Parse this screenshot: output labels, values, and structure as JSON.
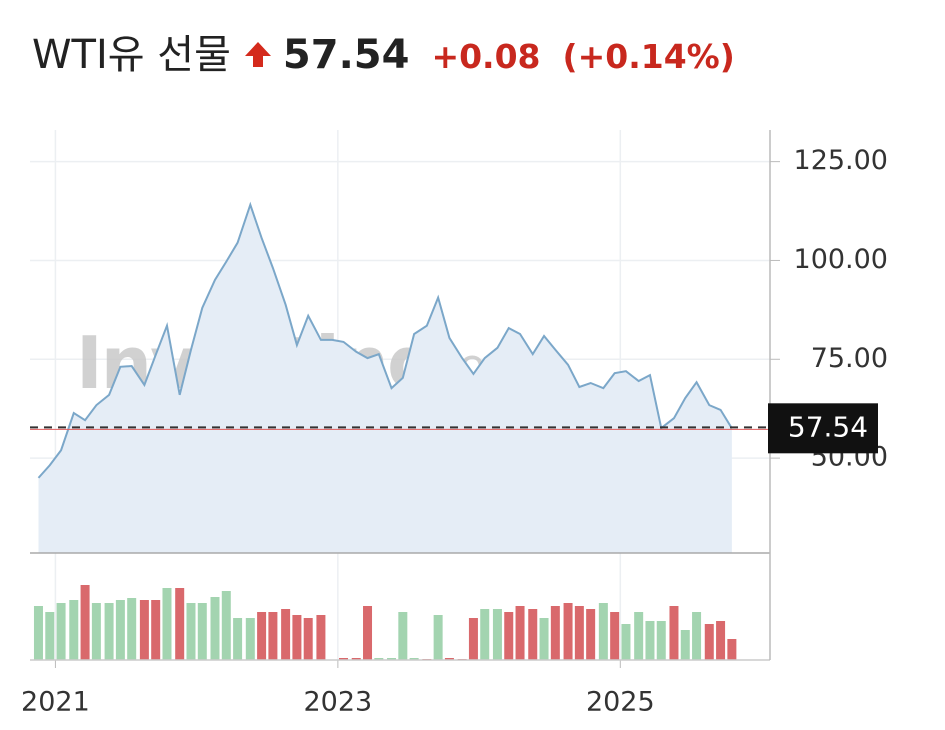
{
  "header": {
    "title": "WTI유 선물",
    "price": "57.54",
    "change": "+0.08",
    "change_pct": "(+0.14%)"
  },
  "chart_data": {
    "type": "line",
    "watermark": "Investing",
    "watermark_domain": "com",
    "x": [
      2020.88,
      2020.96,
      2021.04,
      2021.13,
      2021.21,
      2021.29,
      2021.38,
      2021.46,
      2021.54,
      2021.63,
      2021.71,
      2021.79,
      2021.88,
      2021.96,
      2022.04,
      2022.13,
      2022.21,
      2022.29,
      2022.38,
      2022.46,
      2022.54,
      2022.63,
      2022.71,
      2022.79,
      2022.88,
      2022.96,
      2023.04,
      2023.13,
      2023.21,
      2023.29,
      2023.38,
      2023.46,
      2023.54,
      2023.63,
      2023.71,
      2023.79,
      2023.88,
      2023.96,
      2024.04,
      2024.13,
      2024.21,
      2024.29,
      2024.38,
      2024.46,
      2024.54,
      2024.63,
      2024.71,
      2024.79,
      2024.88,
      2024.96,
      2025.04,
      2025.13,
      2025.21,
      2025.29,
      2025.38,
      2025.46,
      2025.54,
      2025.63,
      2025.71,
      2025.79
    ],
    "series": [
      {
        "name": "WTI",
        "color": "#7ba7c9",
        "fill": "#e5edf6",
        "values": [
          45.0,
          48.2,
          52.0,
          61.4,
          59.6,
          63.4,
          66.0,
          73.1,
          73.3,
          68.5,
          76.1,
          83.5,
          66.0,
          77.4,
          88.0,
          95.1,
          99.7,
          104.5,
          114.1,
          105.7,
          98.1,
          88.8,
          78.6,
          86.0,
          79.9,
          79.9,
          79.4,
          76.9,
          75.3,
          76.3,
          67.7,
          70.3,
          81.4,
          83.5,
          90.6,
          80.4,
          75.3,
          71.3,
          75.3,
          77.9,
          82.9,
          81.4,
          76.3,
          80.9,
          77.4,
          73.6,
          68.0,
          69.0,
          67.7,
          71.5,
          72.0,
          69.5,
          71.0,
          57.6,
          60.1,
          65.2,
          69.2,
          63.4,
          62.2,
          57.54
        ]
      }
    ],
    "volume": {
      "values": [
        54,
        48,
        57,
        60,
        75,
        57,
        57,
        60,
        62,
        60,
        60,
        72,
        72,
        57,
        57,
        63,
        69,
        42,
        42,
        48,
        48,
        51,
        45,
        42,
        45,
        0,
        2,
        2,
        54,
        2,
        2,
        48,
        2,
        1,
        45,
        2,
        1,
        42,
        51,
        51,
        48,
        54,
        51,
        42,
        54,
        57,
        54,
        51,
        57,
        48,
        36,
        48,
        39,
        39,
        54,
        30,
        48,
        36,
        39,
        21
      ],
      "colors": [
        "#a3d4b0",
        "#a3d4b0",
        "#a3d4b0",
        "#a3d4b0",
        "#d9696c",
        "#a3d4b0",
        "#a3d4b0",
        "#a3d4b0",
        "#a3d4b0",
        "#d9696c",
        "#d9696c",
        "#a3d4b0",
        "#d9696c",
        "#a3d4b0",
        "#a3d4b0",
        "#a3d4b0",
        "#a3d4b0",
        "#a3d4b0",
        "#a3d4b0",
        "#d9696c",
        "#d9696c",
        "#d9696c",
        "#d9696c",
        "#d9696c",
        "#d9696c",
        "#d9696c",
        "#d9696c",
        "#d9696c",
        "#d9696c",
        "#a3d4b0",
        "#a3d4b0",
        "#a3d4b0",
        "#a3d4b0",
        "#d9696c",
        "#a3d4b0",
        "#d9696c",
        "#d9696c",
        "#d9696c",
        "#a3d4b0",
        "#a3d4b0",
        "#d9696c",
        "#d9696c",
        "#d9696c",
        "#a3d4b0",
        "#d9696c",
        "#d9696c",
        "#d9696c",
        "#d9696c",
        "#a3d4b0",
        "#d9696c",
        "#a3d4b0",
        "#a3d4b0",
        "#a3d4b0",
        "#a3d4b0",
        "#d9696c",
        "#a3d4b0",
        "#a3d4b0",
        "#d9696c",
        "#d9696c",
        "#d9696c"
      ],
      "ylim": [
        0,
        100
      ]
    },
    "last_value": 57.54,
    "last_label": "57.54",
    "xlim": [
      2020.82,
      2026.06
    ],
    "xticks": [
      2021,
      2023,
      2025
    ],
    "ylim": [
      26,
      133
    ],
    "yticks": [
      {
        "value": 50,
        "label": "50.00"
      },
      {
        "value": 75,
        "label": "75.00"
      },
      {
        "value": 100,
        "label": "100.00"
      },
      {
        "value": 125,
        "label": "125.00"
      }
    ],
    "grid": true
  }
}
